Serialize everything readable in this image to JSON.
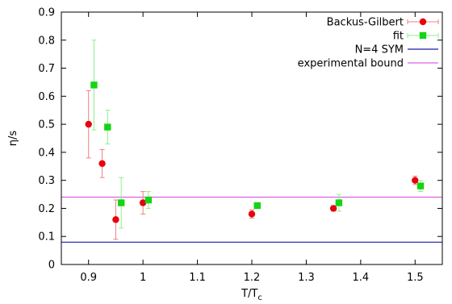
{
  "chart_data": {
    "type": "scatter",
    "xlabel": "T/T",
    "xlabel_sub": "c",
    "ylabel": "η/s",
    "xlim": [
      0.85,
      1.55
    ],
    "ylim": [
      0,
      0.9
    ],
    "x_ticks": [
      "0.9",
      "1",
      "1.1",
      "1.2",
      "1.3",
      "1.4",
      "1.5"
    ],
    "y_ticks": [
      "0",
      "0.1",
      "0.2",
      "0.3",
      "0.4",
      "0.5",
      "0.6",
      "0.7",
      "0.8",
      "0.9"
    ],
    "legend_position": "top-right",
    "series": [
      {
        "name": "Backus-Gilbert",
        "marker": "circle",
        "color": "#e8000b",
        "errorbar_color": "#f08080",
        "points": [
          {
            "x": 0.9,
            "y": 0.5,
            "lo": 0.38,
            "hi": 0.62
          },
          {
            "x": 0.925,
            "y": 0.36,
            "lo": 0.31,
            "hi": 0.41
          },
          {
            "x": 0.95,
            "y": 0.16,
            "lo": 0.09,
            "hi": 0.23
          },
          {
            "x": 1.0,
            "y": 0.22,
            "lo": 0.18,
            "hi": 0.26
          },
          {
            "x": 1.2,
            "y": 0.18,
            "lo": 0.165,
            "hi": 0.195
          },
          {
            "x": 1.35,
            "y": 0.2,
            "lo": 0.19,
            "hi": 0.21
          },
          {
            "x": 1.5,
            "y": 0.3,
            "lo": 0.285,
            "hi": 0.315
          }
        ]
      },
      {
        "name": "fit",
        "marker": "square",
        "color": "#14d414",
        "errorbar_color": "#90ee90",
        "points": [
          {
            "x": 0.91,
            "y": 0.64,
            "lo": 0.48,
            "hi": 0.8
          },
          {
            "x": 0.935,
            "y": 0.49,
            "lo": 0.43,
            "hi": 0.55
          },
          {
            "x": 0.96,
            "y": 0.22,
            "lo": 0.13,
            "hi": 0.31
          },
          {
            "x": 1.01,
            "y": 0.23,
            "lo": 0.2,
            "hi": 0.26
          },
          {
            "x": 1.21,
            "y": 0.21,
            "lo": 0.2,
            "hi": 0.22
          },
          {
            "x": 1.36,
            "y": 0.22,
            "lo": 0.19,
            "hi": 0.25
          },
          {
            "x": 1.51,
            "y": 0.28,
            "lo": 0.26,
            "hi": 0.3
          }
        ]
      },
      {
        "name": "N=4 SYM",
        "type": "hline",
        "y": 0.0796,
        "color": "#1a1aa6"
      },
      {
        "name": "experimental bound",
        "type": "hline",
        "y": 0.24,
        "color": "#e060e0"
      }
    ]
  }
}
